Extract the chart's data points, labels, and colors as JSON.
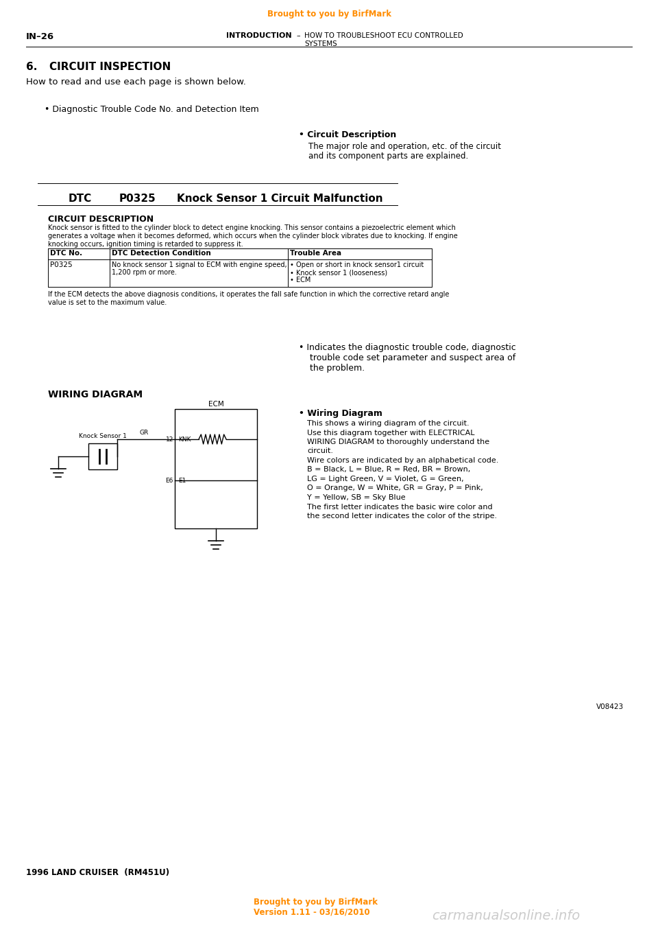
{
  "bg_color": "#ffffff",
  "top_banner_text": "Brought to you by BirfMark",
  "top_banner_color": "#FF8C00",
  "page_num": "IN–26",
  "header_center": "INTRODUCTION",
  "header_dash": "–",
  "header_right1": "HOW TO TROUBLESHOOT ECU CONTROLLED",
  "header_right2": "SYSTEMS",
  "section_num": "6.",
  "section_title": "CIRCUIT INSPECTION",
  "section_intro": "How to read and use each page is shown below.",
  "bullet1_text": "• Diagnostic Trouble Code No. and Detection Item",
  "bullet2_title": "• Circuit Description",
  "bullet2_line1": "The major role and operation, etc. of the circuit",
  "bullet2_line2": "and its component parts are explained.",
  "dtc_label": "DTC",
  "dtc_code": "P0325",
  "dtc_desc": "Knock Sensor 1 Circuit Malfunction",
  "circuit_desc_title": "CIRCUIT DESCRIPTION",
  "circuit_desc_line1": "Knock sensor is fitted to the cylinder block to detect engine knocking. This sensor contains a piezoelectric element which",
  "circuit_desc_line2": "generates a voltage when it becomes deformed, which occurs when the cylinder block vibrates due to knocking. If engine",
  "circuit_desc_line3": "knocking occurs, ignition timing is retarded to suppress it.",
  "table_h1": "DTC No.",
  "table_h2": "DTC Detection Condition",
  "table_h3": "Trouble Area",
  "table_dtc": "P0325",
  "table_cond1": "No knock sensor 1 signal to ECM with engine speed,",
  "table_cond2": "1,200 rpm or more.",
  "table_trouble1": "• Open or short in knock sensor1 circuit",
  "table_trouble2": "• Knock sensor 1 (looseness)",
  "table_trouble3": "• ECM",
  "table_note1": "If the ECM detects the above diagnosis conditions, it operates the fall safe function in which the corrective retard angle",
  "table_note2": "value is set to the maximum value.",
  "bullet3_line1": "• Indicates the diagnostic trouble code, diagnostic",
  "bullet3_line2": "trouble code set parameter and suspect area of",
  "bullet3_line3": "the problem.",
  "wiring_title": "WIRING DIAGRAM",
  "bullet4_title": "• Wiring Diagram",
  "bullet4_lines": [
    "This shows a wiring diagram of the circuit.",
    "Use this diagram together with ELECTRICAL",
    "WIRING DIAGRAM to thoroughly understand the",
    "circuit.",
    "Wire colors are indicated by an alphabetical code.",
    "B = Black, L = Blue, R = Red, BR = Brown,",
    "LG = Light Green, V = Violet, G = Green,",
    "O = Orange, W = White, GR = Gray, P = Pink,",
    "Y = Yellow, SB = Sky Blue",
    "The first letter indicates the basic wire color and",
    "the second letter indicates the color of the stripe."
  ],
  "version_text": "V08423",
  "bottom_text1": "1996 LAND CRUISER  (RM451U)",
  "bottom_banner1": "Brought to you by BirfMark",
  "bottom_banner2": "Version 1.11 - 03/16/2010",
  "bottom_right": "carmanualsonline.info"
}
